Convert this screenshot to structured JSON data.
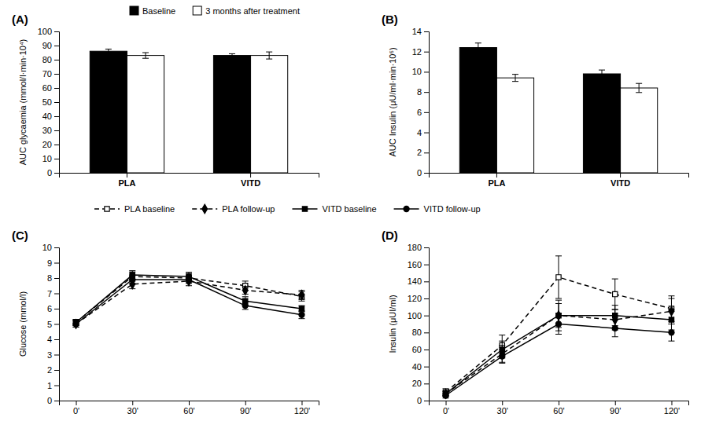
{
  "chart_data": [
    {
      "type": "bar",
      "title": "(A)",
      "categories": [
        "PLA",
        "VITD"
      ],
      "series": [
        {
          "name": "Baseline",
          "color": "#000000",
          "values": [
            86,
            83
          ],
          "errors": [
            1.5,
            1.2
          ]
        },
        {
          "name": "3 months after treatment",
          "color": "#ffffff",
          "values": [
            83,
            83
          ],
          "errors": [
            2.0,
            2.5
          ]
        }
      ],
      "ylabel": "AUC glycaemia (mmol/l·min·10⁴)",
      "ylim": [
        0,
        100
      ],
      "yticks": [
        0,
        10,
        20,
        30,
        40,
        50,
        60,
        70,
        80,
        90,
        100
      ]
    },
    {
      "type": "bar",
      "title": "(B)",
      "categories": [
        "PLA",
        "VITD"
      ],
      "series": [
        {
          "color": "#000000",
          "values": [
            12.4,
            9.8
          ],
          "errors": [
            0.45,
            0.38
          ]
        },
        {
          "color": "#ffffff",
          "values": [
            9.4,
            8.4
          ],
          "errors": [
            0.35,
            0.45
          ]
        }
      ],
      "ylabel": "AUC Insulin (μU/ml·min·10⁶)",
      "ylim": [
        0,
        14
      ],
      "yticks": [
        0,
        2,
        4,
        6,
        8,
        10,
        12,
        14
      ]
    },
    {
      "type": "line",
      "title": "(C)",
      "categories": [
        "0'",
        "30'",
        "60'",
        "90'",
        "120'"
      ],
      "series": [
        {
          "name": "PLA baseline",
          "color": "#000000",
          "marker": "square-open",
          "line_style": "dashed",
          "values": [
            5.1,
            8.1,
            8.0,
            7.5,
            6.8
          ],
          "errors": [
            0.2,
            0.3,
            0.3,
            0.3,
            0.3
          ]
        },
        {
          "name": "PLA follow-up",
          "color": "#000000",
          "marker": "diamond",
          "line_style": "dashed",
          "values": [
            5.0,
            7.6,
            7.8,
            7.2,
            6.9
          ],
          "errors": [
            0.2,
            0.3,
            0.3,
            0.25,
            0.3
          ]
        },
        {
          "name": "VITD baseline",
          "color": "#000000",
          "marker": "square",
          "line_style": "solid",
          "values": [
            5.1,
            8.2,
            8.1,
            6.5,
            6.0
          ],
          "errors": [
            0.2,
            0.28,
            0.28,
            0.28,
            0.2
          ]
        },
        {
          "name": "VITD follow-up",
          "color": "#000000",
          "marker": "circle",
          "line_style": "solid",
          "values": [
            5.0,
            7.9,
            7.9,
            6.2,
            5.6
          ],
          "errors": [
            0.2,
            0.25,
            0.25,
            0.25,
            0.25
          ]
        }
      ],
      "ylabel": "Glucose (mmol/l)",
      "ylim": [
        0,
        10
      ],
      "yticks": [
        0,
        1,
        2,
        3,
        4,
        5,
        6,
        7,
        8,
        9,
        10
      ]
    },
    {
      "type": "line",
      "title": "(D)",
      "categories": [
        "0'",
        "30'",
        "60'",
        "90'",
        "120'"
      ],
      "series": [
        {
          "color": "#000000",
          "marker": "square-open",
          "line_style": "dashed",
          "values": [
            10,
            65,
            145,
            125,
            108
          ],
          "errors": [
            4,
            12,
            25,
            18,
            15
          ]
        },
        {
          "color": "#000000",
          "marker": "diamond",
          "line_style": "dashed",
          "values": [
            8,
            55,
            100,
            95,
            105
          ],
          "errors": [
            3,
            10,
            18,
            12,
            15
          ]
        },
        {
          "color": "#000000",
          "marker": "square",
          "line_style": "solid",
          "values": [
            8,
            60,
            100,
            100,
            95
          ],
          "errors": [
            3,
            10,
            14,
            12,
            12
          ]
        },
        {
          "color": "#000000",
          "marker": "circle",
          "line_style": "solid",
          "values": [
            6,
            52,
            90,
            85,
            80
          ],
          "errors": [
            3,
            8,
            12,
            10,
            10
          ]
        }
      ],
      "ylabel": "Insulin (μUI/ml)",
      "ylim": [
        0,
        180
      ],
      "yticks": [
        0,
        20,
        40,
        60,
        80,
        100,
        120,
        140,
        160,
        180
      ]
    }
  ]
}
